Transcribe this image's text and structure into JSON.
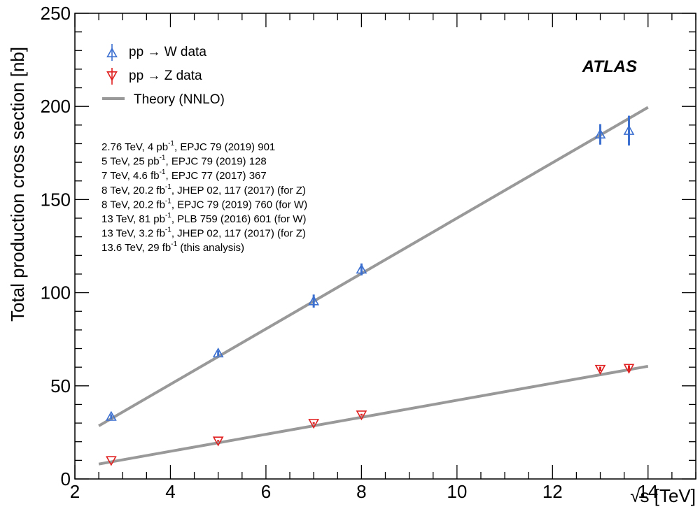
{
  "chart_data": {
    "type": "scatter",
    "xlabel": "√s  [TeV]",
    "ylabel": "Total production cross section [nb]",
    "xlim": [
      2,
      15
    ],
    "ylim": [
      0,
      250
    ],
    "x_ticks": [
      "2",
      "4",
      "6",
      "8",
      "10",
      "12",
      "14"
    ],
    "y_ticks": [
      "0",
      "50",
      "100",
      "150",
      "200",
      "250"
    ],
    "brand": "ATLAS",
    "colors": {
      "W": "#3b6fd0",
      "Z": "#e02020",
      "theory": "#999999"
    },
    "series": [
      {
        "name": "pp → W data",
        "marker": "triangle-up-open",
        "points": [
          {
            "x": 2.76,
            "y": 33.5,
            "err": 1.2
          },
          {
            "x": 5.0,
            "y": 67.5,
            "err": 1.4
          },
          {
            "x": 7.0,
            "y": 95.5,
            "err": 3.5
          },
          {
            "x": 8.0,
            "y": 112.5,
            "err": 3.2
          },
          {
            "x": 13.0,
            "y": 185.0,
            "err": 5.5
          },
          {
            "x": 13.6,
            "y": 187.0,
            "err": 8.0
          }
        ]
      },
      {
        "name": "pp → Z data",
        "marker": "triangle-down-open",
        "points": [
          {
            "x": 2.76,
            "y": 10.0,
            "err": 0.3
          },
          {
            "x": 5.0,
            "y": 20.5,
            "err": 0.4
          },
          {
            "x": 7.0,
            "y": 30.0,
            "err": 0.5
          },
          {
            "x": 8.0,
            "y": 34.5,
            "err": 0.5
          },
          {
            "x": 13.0,
            "y": 59.0,
            "err": 1.2
          },
          {
            "x": 13.6,
            "y": 59.5,
            "err": 1.5
          }
        ]
      }
    ],
    "theory": {
      "name": "Theory (NNLO)",
      "lines": [
        {
          "x": [
            2.5,
            14.0
          ],
          "y": [
            28.5,
            199.5
          ]
        },
        {
          "x": [
            2.5,
            14.0
          ],
          "y": [
            8.0,
            60.5
          ]
        }
      ]
    },
    "references": [
      {
        "pre": "2.76 TeV, 4 pb",
        "sup": "-1",
        "post": ", EPJC 79 (2019) 901"
      },
      {
        "pre": "5 TeV, 25 pb",
        "sup": "-1",
        "post": ", EPJC 79 (2019) 128"
      },
      {
        "pre": "7 TeV, 4.6 fb",
        "sup": "-1",
        "post": ", EPJC 77 (2017) 367"
      },
      {
        "pre": "8 TeV, 20.2 fb",
        "sup": "-1",
        "post": ", JHEP 02, 117 (2017) (for Z)"
      },
      {
        "pre": "8 TeV, 20.2 fb",
        "sup": "-1",
        "post": ", EPJC 79 (2019) 760 (for W)"
      },
      {
        "pre": "13 TeV, 81 pb",
        "sup": "-1",
        "post": ", PLB 759 (2016) 601 (for W)"
      },
      {
        "pre": "13 TeV, 3.2 fb",
        "sup": "-1",
        "post": ", JHEP 02, 117 (2017) (for Z)"
      },
      {
        "pre": "13.6 TeV, 29 fb",
        "sup": "-1",
        "post": " (this analysis)"
      }
    ]
  }
}
